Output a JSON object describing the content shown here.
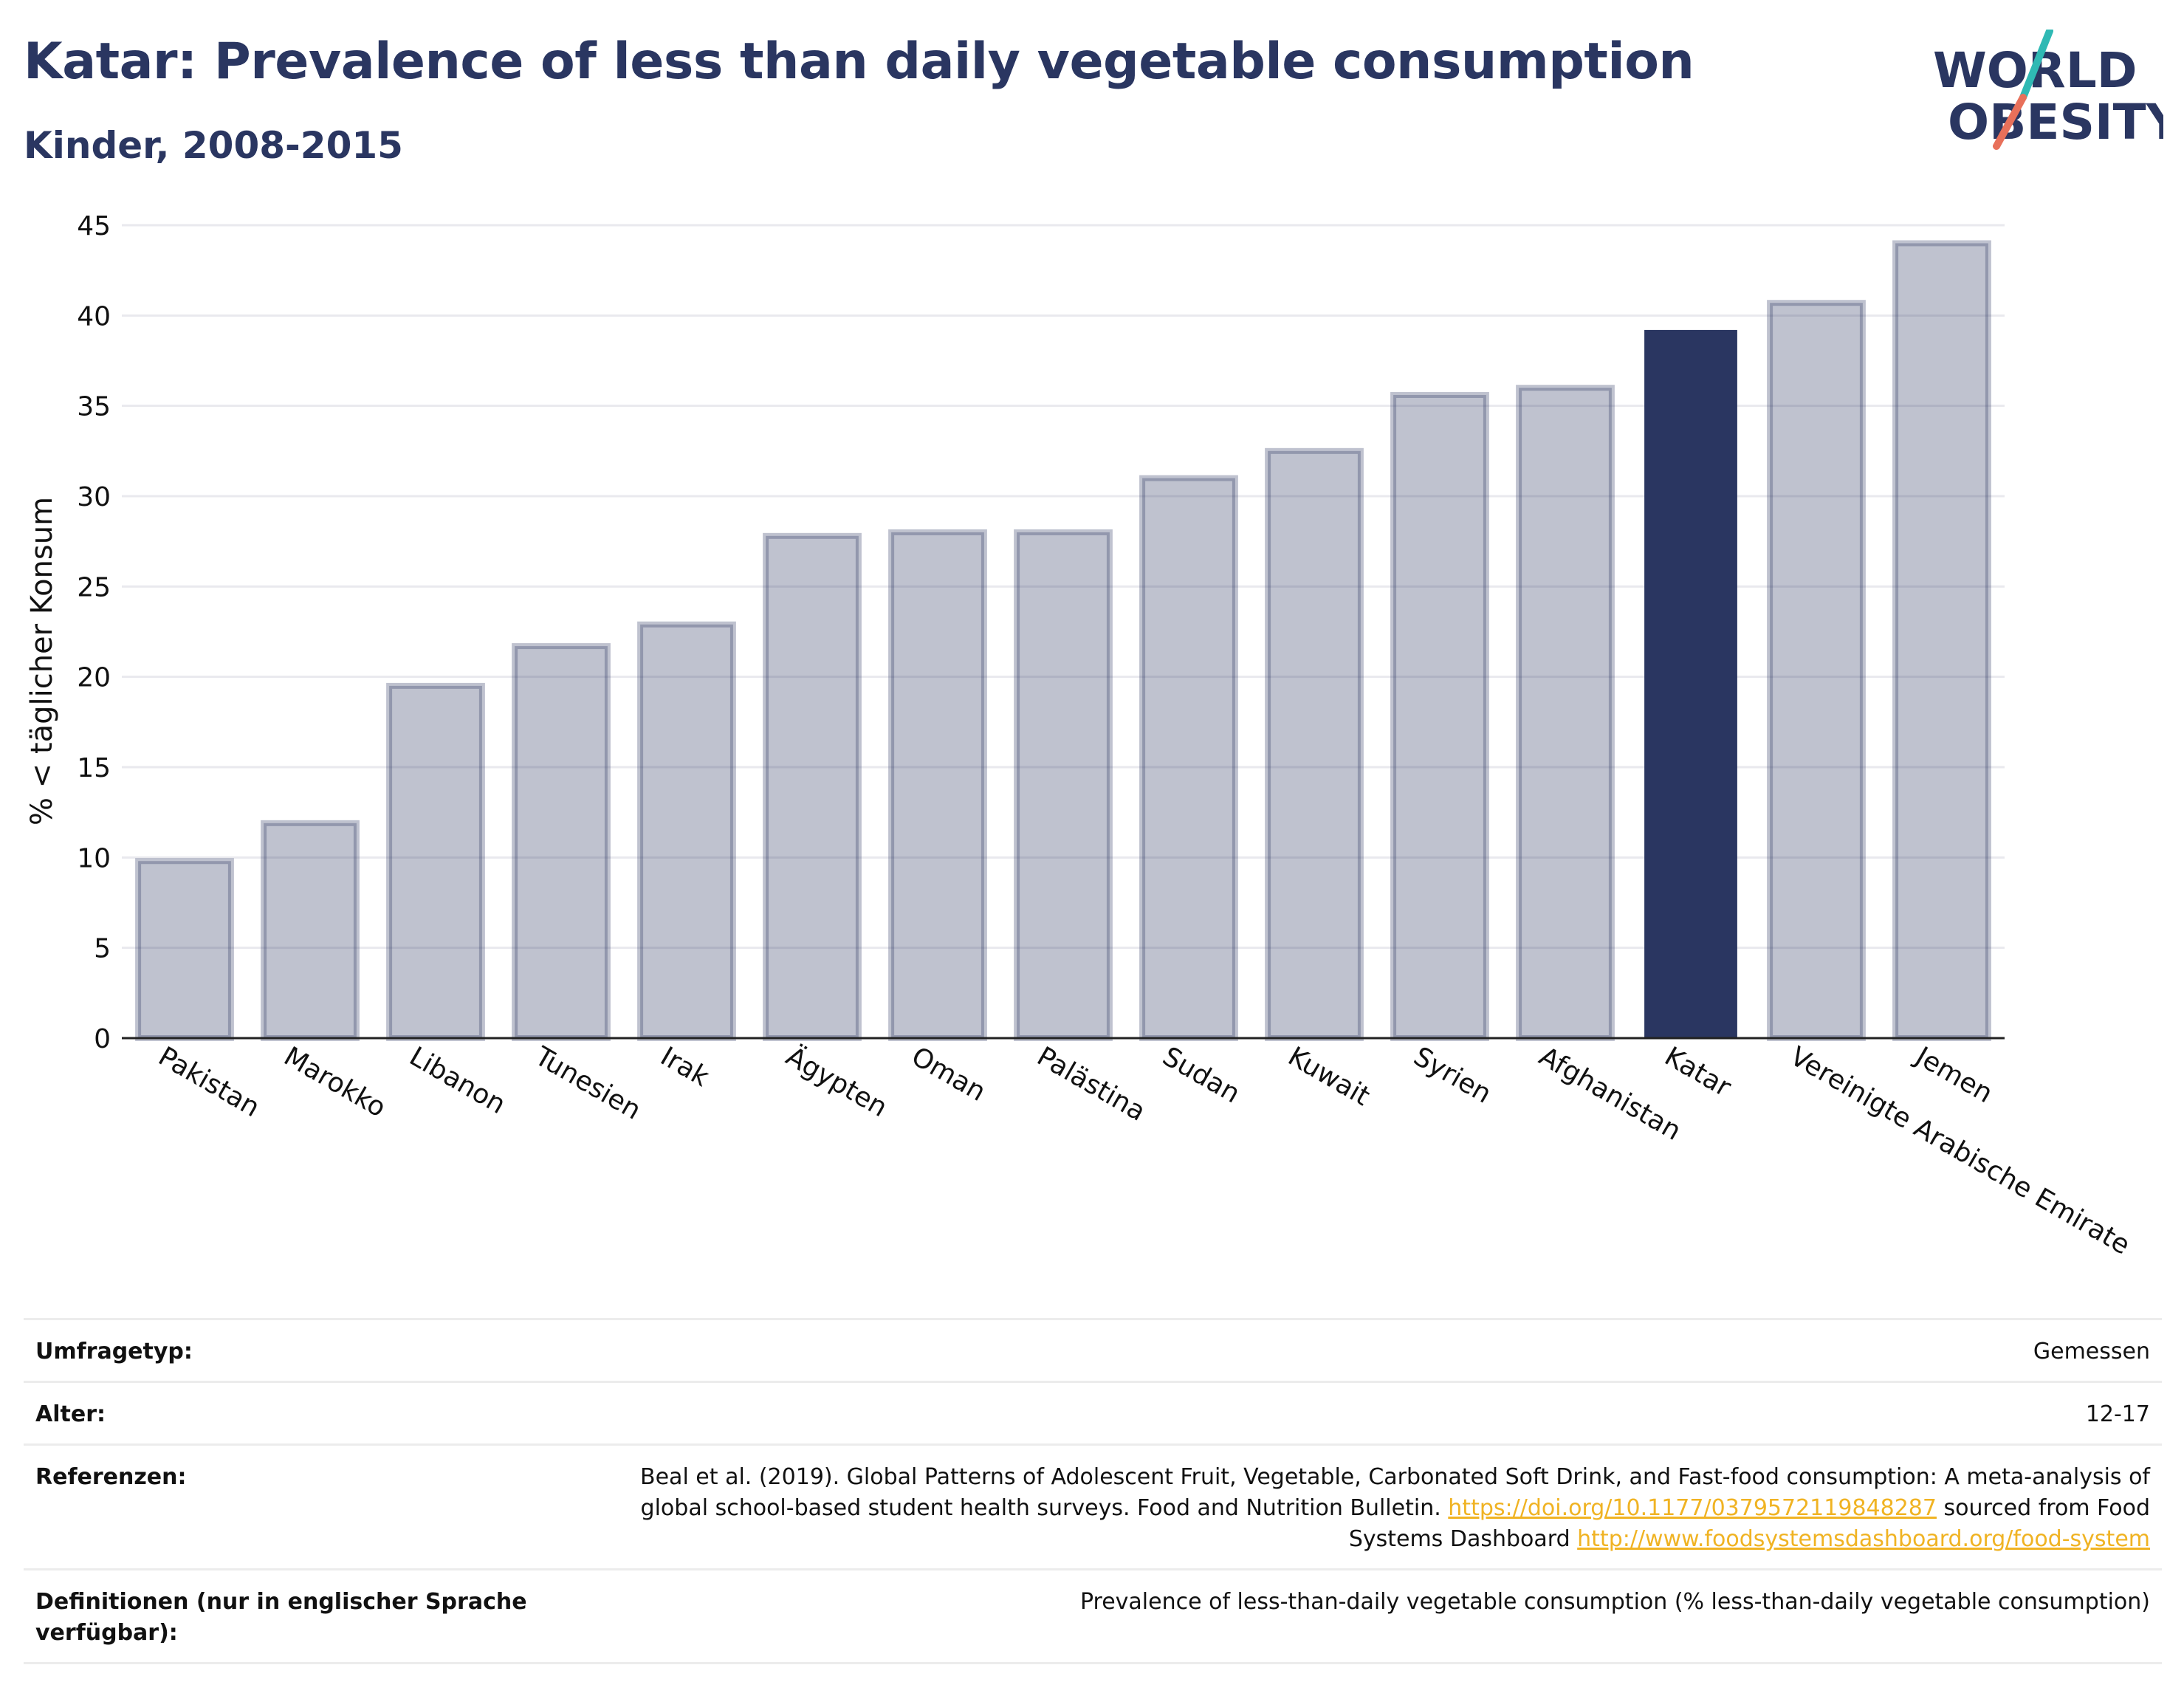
{
  "header": {
    "title": "Katar: Prevalence of less than daily vegetable consumption",
    "subtitle": "Kinder, 2008-2015"
  },
  "logo": {
    "line1": "WORLD",
    "line2": "OBESITY",
    "colors": {
      "text": "#2a3661",
      "teal": "#2fb9b4",
      "coral": "#e8705a"
    }
  },
  "chart_data": {
    "type": "bar",
    "title": "",
    "xlabel": "",
    "ylabel": "% < täglicher Konsum",
    "ylim": [
      0,
      45
    ],
    "yticks": [
      0,
      5,
      10,
      15,
      20,
      25,
      30,
      35,
      40,
      45
    ],
    "grid": true,
    "categories": [
      "Pakistan",
      "Marokko",
      "Libanon",
      "Tunesien",
      "Irak",
      "Ägypten",
      "Oman",
      "Palästina",
      "Sudan",
      "Kuwait",
      "Syrien",
      "Afghanistan",
      "Katar",
      "Vereinigte Arabische Emirate",
      "Jemen"
    ],
    "values": [
      9.8,
      11.9,
      19.5,
      21.7,
      22.9,
      27.8,
      28.0,
      28.0,
      31.0,
      32.5,
      35.6,
      36.0,
      39.2,
      40.7,
      44.0
    ],
    "highlight": "Katar",
    "colors": {
      "bar": "#2a3661",
      "bar_fill_opacity": 0.3,
      "highlight": "#2a3661",
      "grid": "#e9e9ee",
      "axis": "#222222"
    }
  },
  "meta": {
    "rows": [
      {
        "label": "Umfragetyp:",
        "value": "Gemessen"
      },
      {
        "label": "Alter:",
        "value": "12-17"
      },
      {
        "label": "Referenzen:",
        "value_parts": [
          {
            "text": "Beal et al. (2019). Global Patterns of Adolescent Fruit, Vegetable, Carbonated Soft Drink, and Fast-food consumption: A meta-analysis of global school-based student health surveys. Food and Nutrition Bulletin. "
          },
          {
            "text": "https://doi.org/10.1177/0379572119848287",
            "link": true
          },
          {
            "text": " sourced from Food Systems Dashboard "
          },
          {
            "text": "http://www.foodsystemsdashboard.org/food-system",
            "link": true
          }
        ]
      },
      {
        "label": "Definitionen (nur in englischer Sprache verfügbar):",
        "value": "Prevalence of less-than-daily vegetable consumption (% less-than-daily vegetable consumption)"
      }
    ]
  }
}
